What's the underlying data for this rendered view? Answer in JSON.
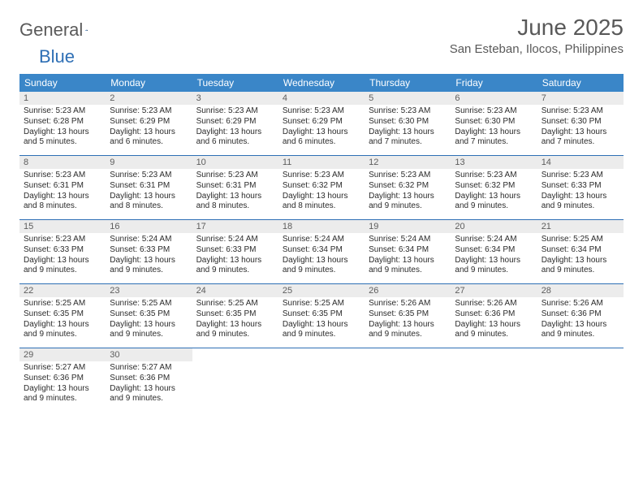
{
  "brand": {
    "word1": "General",
    "word2": "Blue"
  },
  "title": "June 2025",
  "location": "San Esteban, Ilocos, Philippines",
  "colors": {
    "header_bg": "#3a86c8",
    "header_text": "#ffffff",
    "day_num_bg": "#ececec",
    "rule": "#2e6fb5",
    "text": "#2b2b2b",
    "muted": "#595959"
  },
  "dow": [
    "Sunday",
    "Monday",
    "Tuesday",
    "Wednesday",
    "Thursday",
    "Friday",
    "Saturday"
  ],
  "days": [
    {
      "n": 1,
      "sr": "5:23 AM",
      "ss": "6:28 PM",
      "dl": "13 hours and 5 minutes."
    },
    {
      "n": 2,
      "sr": "5:23 AM",
      "ss": "6:29 PM",
      "dl": "13 hours and 6 minutes."
    },
    {
      "n": 3,
      "sr": "5:23 AM",
      "ss": "6:29 PM",
      "dl": "13 hours and 6 minutes."
    },
    {
      "n": 4,
      "sr": "5:23 AM",
      "ss": "6:29 PM",
      "dl": "13 hours and 6 minutes."
    },
    {
      "n": 5,
      "sr": "5:23 AM",
      "ss": "6:30 PM",
      "dl": "13 hours and 7 minutes."
    },
    {
      "n": 6,
      "sr": "5:23 AM",
      "ss": "6:30 PM",
      "dl": "13 hours and 7 minutes."
    },
    {
      "n": 7,
      "sr": "5:23 AM",
      "ss": "6:30 PM",
      "dl": "13 hours and 7 minutes."
    },
    {
      "n": 8,
      "sr": "5:23 AM",
      "ss": "6:31 PM",
      "dl": "13 hours and 8 minutes."
    },
    {
      "n": 9,
      "sr": "5:23 AM",
      "ss": "6:31 PM",
      "dl": "13 hours and 8 minutes."
    },
    {
      "n": 10,
      "sr": "5:23 AM",
      "ss": "6:31 PM",
      "dl": "13 hours and 8 minutes."
    },
    {
      "n": 11,
      "sr": "5:23 AM",
      "ss": "6:32 PM",
      "dl": "13 hours and 8 minutes."
    },
    {
      "n": 12,
      "sr": "5:23 AM",
      "ss": "6:32 PM",
      "dl": "13 hours and 9 minutes."
    },
    {
      "n": 13,
      "sr": "5:23 AM",
      "ss": "6:32 PM",
      "dl": "13 hours and 9 minutes."
    },
    {
      "n": 14,
      "sr": "5:23 AM",
      "ss": "6:33 PM",
      "dl": "13 hours and 9 minutes."
    },
    {
      "n": 15,
      "sr": "5:23 AM",
      "ss": "6:33 PM",
      "dl": "13 hours and 9 minutes."
    },
    {
      "n": 16,
      "sr": "5:24 AM",
      "ss": "6:33 PM",
      "dl": "13 hours and 9 minutes."
    },
    {
      "n": 17,
      "sr": "5:24 AM",
      "ss": "6:33 PM",
      "dl": "13 hours and 9 minutes."
    },
    {
      "n": 18,
      "sr": "5:24 AM",
      "ss": "6:34 PM",
      "dl": "13 hours and 9 minutes."
    },
    {
      "n": 19,
      "sr": "5:24 AM",
      "ss": "6:34 PM",
      "dl": "13 hours and 9 minutes."
    },
    {
      "n": 20,
      "sr": "5:24 AM",
      "ss": "6:34 PM",
      "dl": "13 hours and 9 minutes."
    },
    {
      "n": 21,
      "sr": "5:25 AM",
      "ss": "6:34 PM",
      "dl": "13 hours and 9 minutes."
    },
    {
      "n": 22,
      "sr": "5:25 AM",
      "ss": "6:35 PM",
      "dl": "13 hours and 9 minutes."
    },
    {
      "n": 23,
      "sr": "5:25 AM",
      "ss": "6:35 PM",
      "dl": "13 hours and 9 minutes."
    },
    {
      "n": 24,
      "sr": "5:25 AM",
      "ss": "6:35 PM",
      "dl": "13 hours and 9 minutes."
    },
    {
      "n": 25,
      "sr": "5:25 AM",
      "ss": "6:35 PM",
      "dl": "13 hours and 9 minutes."
    },
    {
      "n": 26,
      "sr": "5:26 AM",
      "ss": "6:35 PM",
      "dl": "13 hours and 9 minutes."
    },
    {
      "n": 27,
      "sr": "5:26 AM",
      "ss": "6:36 PM",
      "dl": "13 hours and 9 minutes."
    },
    {
      "n": 28,
      "sr": "5:26 AM",
      "ss": "6:36 PM",
      "dl": "13 hours and 9 minutes."
    },
    {
      "n": 29,
      "sr": "5:27 AM",
      "ss": "6:36 PM",
      "dl": "13 hours and 9 minutes."
    },
    {
      "n": 30,
      "sr": "5:27 AM",
      "ss": "6:36 PM",
      "dl": "13 hours and 9 minutes."
    }
  ],
  "labels": {
    "sunrise": "Sunrise:",
    "sunset": "Sunset:",
    "daylight": "Daylight:"
  },
  "layout": {
    "start_dow": 0,
    "total_days": 30,
    "cols": 7
  }
}
